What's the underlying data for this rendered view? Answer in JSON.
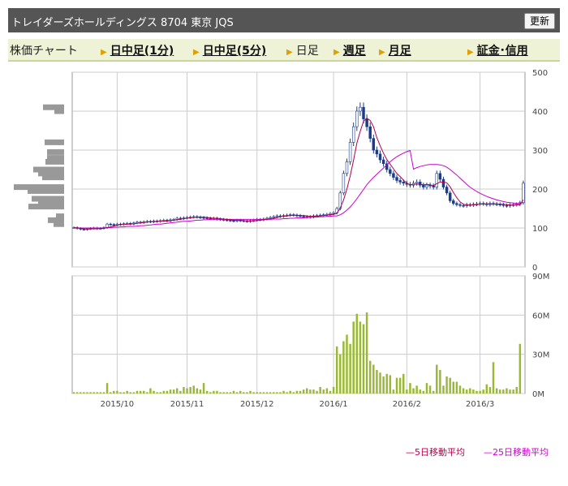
{
  "header": {
    "title": "トレイダーズホールディングス 8704 東京 JQS",
    "refresh_label": "更新"
  },
  "tabs": [
    {
      "label": "株価チャート",
      "link": false,
      "arrow": false
    },
    {
      "label": "日中足(1分)",
      "link": true,
      "arrow": true
    },
    {
      "label": "日中足(5分)",
      "link": true,
      "arrow": true
    },
    {
      "label": "日足",
      "link": false,
      "arrow": true
    },
    {
      "label": "週足",
      "link": true,
      "arrow": true
    },
    {
      "label": "月足",
      "link": true,
      "arrow": true
    },
    {
      "label": "証金･信用",
      "link": true,
      "arrow": true
    }
  ],
  "legend": [
    {
      "label": "5日移動平均",
      "color": "#b0004a"
    },
    {
      "label": "25日移動平均",
      "color": "#cc00cc"
    }
  ],
  "colors": {
    "candle_up": "#ffffff",
    "candle_down": "#1a3c8a",
    "volume": "#99b833",
    "volume_profile": "#999999",
    "grid": "#cccccc"
  },
  "chart_data": [
    {
      "type": "candlestick",
      "title": "",
      "ylim": [
        0,
        500
      ],
      "y_ticks": [
        "0",
        "100",
        "200",
        "300",
        "400",
        "500"
      ],
      "x_ticks": [
        "2015/10",
        "2015/11",
        "2015/12",
        "2016/1",
        "2016/2",
        "2016/3"
      ],
      "grid": true,
      "close": [
        101,
        99,
        97,
        96,
        98,
        99,
        100,
        98,
        99,
        101,
        110,
        109,
        108,
        110,
        109,
        111,
        112,
        110,
        113,
        115,
        114,
        116,
        117,
        116,
        118,
        117,
        119,
        120,
        118,
        121,
        122,
        125,
        124,
        126,
        127,
        128,
        129,
        128,
        127,
        126,
        125,
        124,
        125,
        123,
        122,
        121,
        120,
        119,
        118,
        120,
        119,
        118,
        117,
        119,
        120,
        122,
        121,
        123,
        125,
        127,
        129,
        131,
        130,
        132,
        133,
        134,
        133,
        132,
        130,
        129,
        128,
        129,
        131,
        132,
        133,
        134,
        135,
        137,
        139,
        150,
        190,
        240,
        270,
        320,
        360,
        400,
        410,
        380,
        360,
        330,
        300,
        290,
        275,
        265,
        250,
        240,
        230,
        222,
        218,
        215,
        212,
        210,
        215,
        218,
        210,
        205,
        210,
        208,
        205,
        240,
        225,
        205,
        190,
        170,
        163,
        160,
        158,
        157,
        160,
        159,
        161,
        162,
        163,
        162,
        160,
        163,
        162,
        161,
        160,
        158,
        157,
        159,
        160,
        161,
        165,
        215
      ],
      "ma5": [
        101,
        100,
        99,
        98,
        97,
        98,
        98,
        98,
        99,
        99,
        101,
        103,
        105,
        107,
        109,
        109,
        110,
        110,
        111,
        112,
        113,
        114,
        115,
        116,
        116,
        117,
        117,
        118,
        118,
        119,
        120,
        121,
        122,
        124,
        125,
        126,
        127,
        128,
        128,
        128,
        127,
        126,
        125,
        125,
        124,
        123,
        122,
        121,
        120,
        120,
        120,
        119,
        118,
        118,
        118,
        119,
        120,
        121,
        122,
        124,
        125,
        127,
        129,
        130,
        131,
        132,
        133,
        133,
        132,
        132,
        131,
        130,
        130,
        130,
        131,
        132,
        133,
        134,
        135,
        138,
        151,
        172,
        200,
        234,
        274,
        318,
        348,
        374,
        382,
        376,
        360,
        332,
        311,
        292,
        276,
        264,
        252,
        240,
        232,
        223,
        215,
        211,
        212,
        213,
        212,
        211,
        212,
        211,
        209,
        214,
        218,
        218,
        216,
        206,
        191,
        178,
        167,
        161,
        159,
        159,
        159,
        160,
        161,
        162,
        162,
        162,
        162,
        162,
        161,
        161,
        160,
        159,
        159,
        159,
        160,
        172
      ],
      "ma25": [
        101,
        100,
        100,
        100,
        100,
        100,
        100,
        100,
        100,
        100,
        101,
        101,
        102,
        102,
        103,
        103,
        104,
        104,
        104,
        105,
        106,
        106,
        107,
        108,
        109,
        110,
        110,
        111,
        112,
        113,
        114,
        115,
        116,
        117,
        117,
        118,
        119,
        120,
        120,
        121,
        121,
        122,
        122,
        122,
        122,
        122,
        122,
        122,
        122,
        122,
        122,
        122,
        122,
        122,
        122,
        122,
        122,
        122,
        122,
        122,
        123,
        123,
        123,
        124,
        124,
        125,
        125,
        126,
        126,
        126,
        127,
        127,
        128,
        128,
        129,
        129,
        130,
        130,
        131,
        131,
        134,
        139,
        146,
        154,
        164,
        175,
        187,
        199,
        211,
        221,
        230,
        238,
        246,
        254,
        262,
        270,
        277,
        283,
        288,
        292,
        296,
        299,
        251,
        255,
        258,
        260,
        262,
        263,
        263,
        263,
        262,
        260,
        256,
        250,
        243,
        236,
        228,
        220,
        212,
        205,
        199,
        194,
        189,
        185,
        181,
        178,
        175,
        172,
        170,
        168,
        166,
        165,
        164,
        163,
        163,
        166
      ]
    },
    {
      "type": "bar",
      "title": "",
      "ylim": [
        0,
        90
      ],
      "y_ticks": [
        "0M",
        "30M",
        "60M",
        "90M"
      ],
      "x_ticks": [
        "2015/10",
        "2015/11",
        "2015/12",
        "2016/1",
        "2016/2",
        "2016/3"
      ],
      "values": [
        1,
        1,
        1,
        1,
        1,
        1,
        1,
        1,
        1,
        1,
        8,
        1,
        2,
        2,
        1,
        1,
        2,
        1,
        1,
        2,
        2,
        2,
        1,
        4,
        2,
        1,
        1,
        2,
        2,
        3,
        3,
        4,
        2,
        5,
        4,
        5,
        6,
        4,
        3,
        8,
        2,
        1,
        2,
        2,
        1,
        1,
        1,
        1,
        2,
        1,
        2,
        1,
        1,
        2,
        1,
        1,
        1,
        1,
        1,
        1,
        1,
        1,
        1,
        2,
        1,
        2,
        1,
        2,
        2,
        3,
        4,
        3,
        3,
        2,
        5,
        3,
        4,
        2,
        5,
        36,
        30,
        40,
        45,
        38,
        55,
        61,
        55,
        53,
        62,
        25,
        22,
        18,
        16,
        13,
        15,
        14,
        3,
        12,
        12,
        15,
        3,
        8,
        4,
        6,
        3,
        2,
        8,
        6,
        2,
        22,
        18,
        6,
        13,
        12,
        9,
        9,
        6,
        4,
        3,
        4,
        3,
        2,
        2,
        3,
        7,
        5,
        24,
        4,
        3,
        3,
        4,
        3,
        3,
        5,
        38
      ]
    },
    {
      "type": "bar",
      "title": "",
      "orientation": "horizontal",
      "series_name": "",
      "price_levels": [
        410,
        400,
        370,
        350,
        320,
        310,
        295,
        280,
        270,
        260,
        250,
        240,
        230,
        220,
        205,
        195,
        175,
        165,
        155,
        130,
        120,
        110,
        100
      ],
      "values": [
        26,
        12,
        0,
        0,
        24,
        0,
        21,
        21,
        23,
        0,
        38,
        32,
        27,
        0,
        62,
        45,
        40,
        32,
        44,
        10,
        20,
        13,
        0
      ]
    }
  ]
}
